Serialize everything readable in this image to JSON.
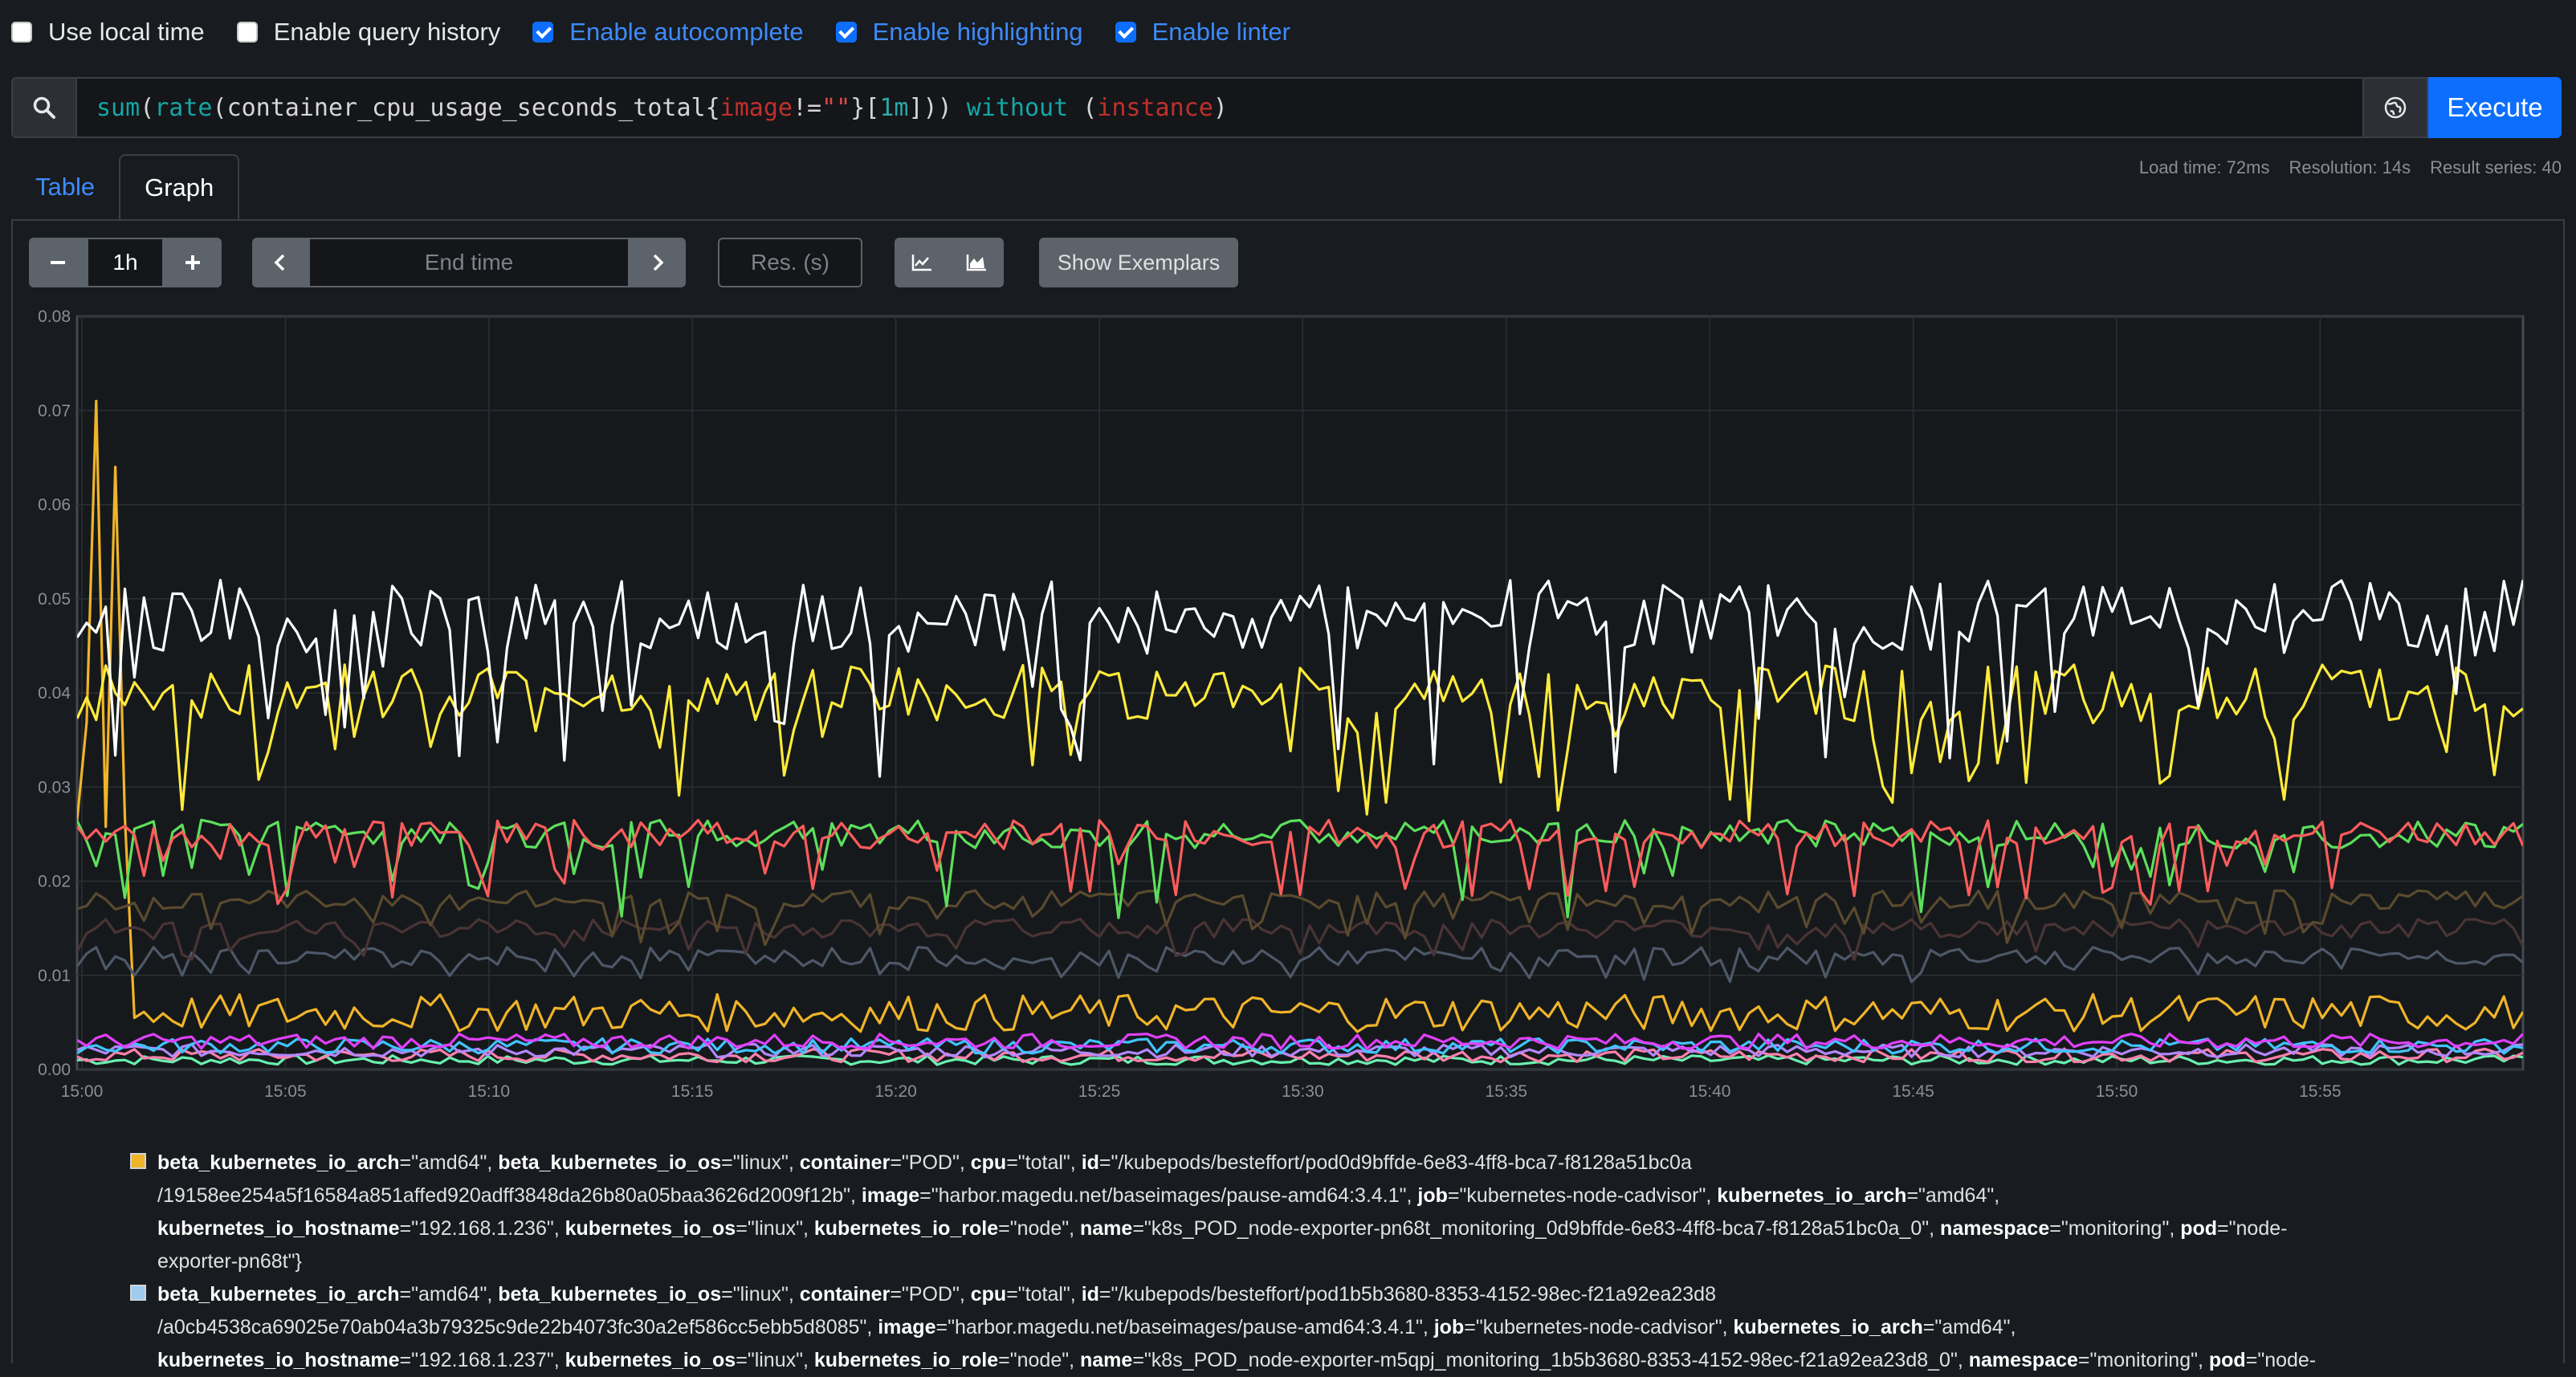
{
  "options": [
    {
      "label": "Use local time",
      "checked": false
    },
    {
      "label": "Enable query history",
      "checked": false
    },
    {
      "label": "Enable autocomplete",
      "checked": true
    },
    {
      "label": "Enable highlighting",
      "checked": true
    },
    {
      "label": "Enable linter",
      "checked": true
    }
  ],
  "query": {
    "tokens": [
      {
        "t": "sum",
        "c": "fn"
      },
      {
        "t": "(",
        "c": "plain"
      },
      {
        "t": "rate",
        "c": "fn"
      },
      {
        "t": "(",
        "c": "plain"
      },
      {
        "t": "container_cpu_usage_seconds_total",
        "c": "plain"
      },
      {
        "t": "{",
        "c": "plain"
      },
      {
        "t": "image",
        "c": "lbl"
      },
      {
        "t": "!=",
        "c": "plain"
      },
      {
        "t": "\"\"",
        "c": "str"
      },
      {
        "t": "}",
        "c": "plain"
      },
      {
        "t": "[",
        "c": "plain"
      },
      {
        "t": "1m",
        "c": "num"
      },
      {
        "t": "]",
        "c": "plain"
      },
      {
        "t": ")) ",
        "c": "plain"
      },
      {
        "t": "without",
        "c": "kw"
      },
      {
        "t": " (",
        "c": "plain"
      },
      {
        "t": "instance",
        "c": "lbl"
      },
      {
        "t": ")",
        "c": "plain"
      }
    ],
    "execute_label": "Execute"
  },
  "tabs": {
    "table": "Table",
    "graph": "Graph"
  },
  "meta": {
    "load_time": "Load time: 72ms",
    "resolution": "Resolution: 14s",
    "result_series": "Result series: 40"
  },
  "controls": {
    "range_value": "1h",
    "end_time_placeholder": "End time",
    "res_placeholder": "Res. (s)",
    "show_exemplars": "Show Exemplars"
  },
  "colors": {
    "accent": "#0d6efd",
    "background": "#181b1f",
    "grid": "#2b2f34"
  },
  "chart_data": {
    "type": "line",
    "ylim": [
      0,
      0.08
    ],
    "y_ticks": [
      "0.00",
      "0.01",
      "0.02",
      "0.03",
      "0.04",
      "0.05",
      "0.06",
      "0.07",
      "0.08"
    ],
    "x_ticks": [
      "15:00",
      "15:05",
      "15:10",
      "15:15",
      "15:20",
      "15:25",
      "15:30",
      "15:35",
      "15:40",
      "15:45",
      "15:50",
      "15:55"
    ],
    "grid": true,
    "series": [
      {
        "color": "#ffffff",
        "base": 0.048,
        "spread": 0.004,
        "dips": 0.016
      },
      {
        "color": "#ffeb3b",
        "base": 0.04,
        "spread": 0.003,
        "dips": 0.012
      },
      {
        "color": "#ff5c5c",
        "base": 0.025,
        "spread": 0.0015,
        "dips": 0.007
      },
      {
        "color": "#5ce05c",
        "base": 0.025,
        "spread": 0.0015,
        "dips": 0.008
      },
      {
        "color": "#5a4a2e",
        "base": 0.018,
        "spread": 0.001,
        "dips": 0.004
      },
      {
        "color": "#4a3434",
        "base": 0.015,
        "spread": 0.001,
        "dips": 0.003
      },
      {
        "color": "#4d5868",
        "base": 0.012,
        "spread": 0.001,
        "dips": 0.002
      },
      {
        "color": "#f0b429",
        "base": 0.006,
        "spread": 0.002,
        "dips": 0.0
      },
      {
        "color": "#e040fb",
        "base": 0.003,
        "spread": 0.0008,
        "dips": 0.0
      },
      {
        "color": "#40c4ff",
        "base": 0.0025,
        "spread": 0.0008,
        "dips": 0.0
      },
      {
        "color": "#b388ff",
        "base": 0.002,
        "spread": 0.0007,
        "dips": 0.0
      },
      {
        "color": "#ff80ab",
        "base": 0.0015,
        "spread": 0.0007,
        "dips": 0.0
      },
      {
        "color": "#69f0ae",
        "base": 0.001,
        "spread": 0.0005,
        "dips": 0.0
      }
    ]
  },
  "legend": [
    {
      "swatch": "#f0b429",
      "line1": [
        [
          "k",
          "beta_kubernetes_io_arch"
        ],
        [
          "v",
          "=\"amd64\", "
        ],
        [
          "k",
          "beta_kubernetes_io_os"
        ],
        [
          "v",
          "=\"linux\", "
        ],
        [
          "k",
          "container"
        ],
        [
          "v",
          "=\"POD\", "
        ],
        [
          "k",
          "cpu"
        ],
        [
          "v",
          "=\"total\", "
        ],
        [
          "k",
          "id"
        ],
        [
          "v",
          "=\"/kubepods/besteffort/pod0d9bffde-6e83-4ff8-bca7-f8128a51bc0a"
        ]
      ],
      "line2": [
        [
          "v",
          "/19158ee254a5f16584a851affed920adff3848da26b80a05baa3626d2009f12b\", "
        ],
        [
          "k",
          "image"
        ],
        [
          "v",
          "=\"harbor.magedu.net/baseimages/pause-amd64:3.4.1\", "
        ],
        [
          "k",
          "job"
        ],
        [
          "v",
          "=\"kubernetes-node-cadvisor\", "
        ],
        [
          "k",
          "kubernetes_io_arch"
        ],
        [
          "v",
          "=\"amd64\","
        ]
      ],
      "line3": [
        [
          "k",
          "kubernetes_io_hostname"
        ],
        [
          "v",
          "=\"192.168.1.236\", "
        ],
        [
          "k",
          "kubernetes_io_os"
        ],
        [
          "v",
          "=\"linux\", "
        ],
        [
          "k",
          "kubernetes_io_role"
        ],
        [
          "v",
          "=\"node\", "
        ],
        [
          "k",
          "name"
        ],
        [
          "v",
          "=\"k8s_POD_node-exporter-pn68t_monitoring_0d9bffde-6e83-4ff8-bca7-f8128a51bc0a_0\", "
        ],
        [
          "k",
          "namespace"
        ],
        [
          "v",
          "=\"monitoring\", "
        ],
        [
          "k",
          "pod"
        ],
        [
          "v",
          "=\"node-"
        ]
      ],
      "line4": [
        [
          "v",
          "exporter-pn68t\"}"
        ]
      ]
    },
    {
      "swatch": "#9ecbf0",
      "line1": [
        [
          "k",
          "beta_kubernetes_io_arch"
        ],
        [
          "v",
          "=\"amd64\", "
        ],
        [
          "k",
          "beta_kubernetes_io_os"
        ],
        [
          "v",
          "=\"linux\", "
        ],
        [
          "k",
          "container"
        ],
        [
          "v",
          "=\"POD\", "
        ],
        [
          "k",
          "cpu"
        ],
        [
          "v",
          "=\"total\", "
        ],
        [
          "k",
          "id"
        ],
        [
          "v",
          "=\"/kubepods/besteffort/pod1b5b3680-8353-4152-98ec-f21a92ea23d8"
        ]
      ],
      "line2": [
        [
          "v",
          "/a0cb4538ca69025e70ab04a3b79325c9de22b4073fc30a2ef586cc5ebb5d8085\", "
        ],
        [
          "k",
          "image"
        ],
        [
          "v",
          "=\"harbor.magedu.net/baseimages/pause-amd64:3.4.1\", "
        ],
        [
          "k",
          "job"
        ],
        [
          "v",
          "=\"kubernetes-node-cadvisor\", "
        ],
        [
          "k",
          "kubernetes_io_arch"
        ],
        [
          "v",
          "=\"amd64\","
        ]
      ],
      "line3": [
        [
          "k",
          "kubernetes_io_hostname"
        ],
        [
          "v",
          "=\"192.168.1.237\", "
        ],
        [
          "k",
          "kubernetes_io_os"
        ],
        [
          "v",
          "=\"linux\", "
        ],
        [
          "k",
          "kubernetes_io_role"
        ],
        [
          "v",
          "=\"node\", "
        ],
        [
          "k",
          "name"
        ],
        [
          "v",
          "=\"k8s_POD_node-exporter-m5qpj_monitoring_1b5b3680-8353-4152-98ec-f21a92ea23d8_0\", "
        ],
        [
          "k",
          "namespace"
        ],
        [
          "v",
          "=\"monitoring\", "
        ],
        [
          "k",
          "pod"
        ],
        [
          "v",
          "=\"node-"
        ]
      ],
      "line4": []
    }
  ]
}
